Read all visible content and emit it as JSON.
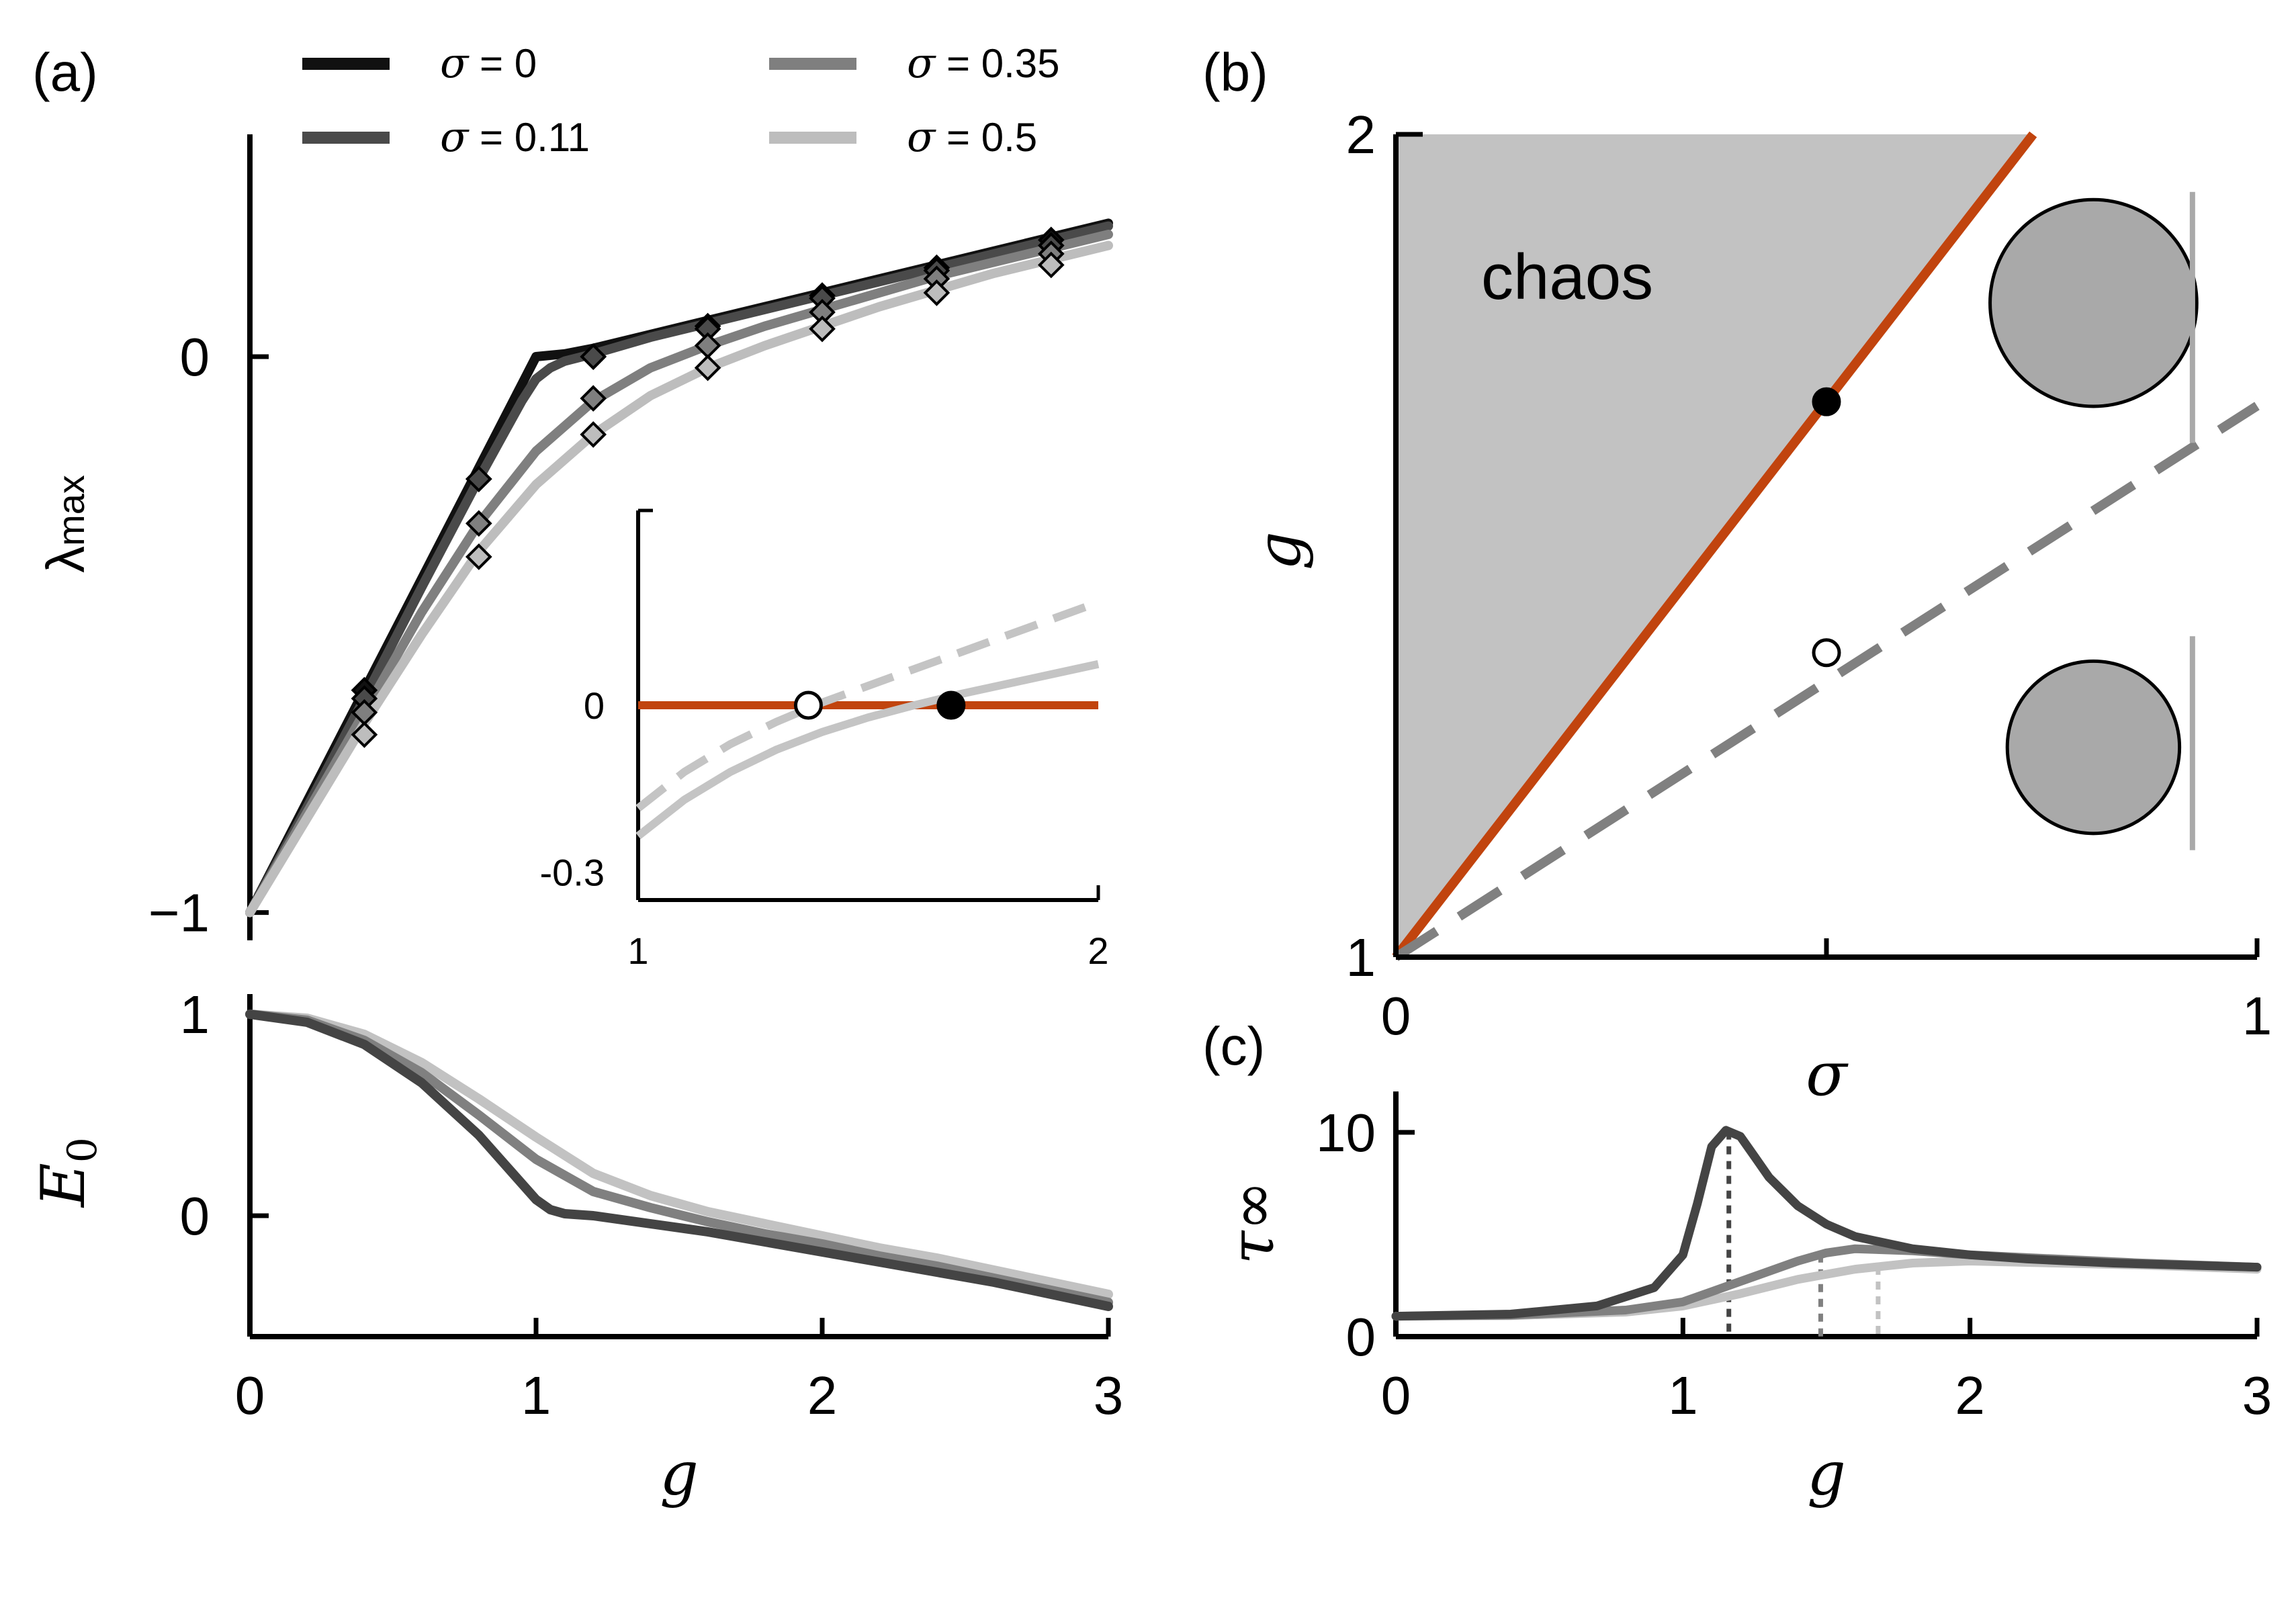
{
  "chart_data": [
    {
      "id": "a-top",
      "panel_label": "(a)",
      "type": "line",
      "xlabel": "",
      "ylabel": "λmax",
      "ylabel_main": "λ",
      "ylabel_sub": "max",
      "xlim": [
        0,
        3
      ],
      "ylim": [
        -1.05,
        0.4
      ],
      "yticks": [
        {
          "v": 0,
          "label": "0"
        },
        {
          "v": -1,
          "label": "−1"
        }
      ],
      "legend": [
        {
          "label": "σ = 0",
          "greek": "σ",
          "rest": " = 0",
          "color": "#111111"
        },
        {
          "label": "σ = 0.11",
          "greek": "σ",
          "rest": " = 0.11",
          "color": "#4a4a4a"
        },
        {
          "label": "σ = 0.35",
          "greek": "σ",
          "rest": " = 0.35",
          "color": "#7f7f7f"
        },
        {
          "label": "σ = 0.5",
          "greek": "σ",
          "rest": " = 0.5",
          "color": "#bdbdbd"
        }
      ],
      "series": [
        {
          "name": "σ = 0",
          "color": "#111111",
          "x": [
            0,
            0.2,
            0.4,
            0.6,
            0.8,
            0.95,
            1.0,
            1.1,
            1.2,
            1.4,
            1.6,
            1.8,
            2.0,
            2.2,
            2.4,
            2.6,
            2.8,
            3.0
          ],
          "y": [
            -1.0,
            -0.8,
            -0.6,
            -0.4,
            -0.2,
            -0.05,
            0.0,
            0.005,
            0.015,
            0.04,
            0.065,
            0.09,
            0.115,
            0.14,
            0.165,
            0.19,
            0.215,
            0.24
          ],
          "markers": {
            "x": [
              0.4,
              0.8,
              1.2,
              1.6,
              2.0,
              2.4,
              2.8
            ],
            "y": [
              -0.6,
              -0.22,
              0.0,
              0.055,
              0.11,
              0.16,
              0.21
            ]
          }
        },
        {
          "name": "σ = 0.11",
          "color": "#4a4a4a",
          "x": [
            0,
            0.2,
            0.4,
            0.6,
            0.8,
            0.95,
            1.0,
            1.05,
            1.1,
            1.2,
            1.4,
            1.6,
            1.8,
            2.0,
            2.2,
            2.4,
            2.6,
            2.8,
            3.0
          ],
          "y": [
            -1.0,
            -0.81,
            -0.615,
            -0.415,
            -0.22,
            -0.08,
            -0.04,
            -0.02,
            -0.008,
            0.005,
            0.035,
            0.06,
            0.085,
            0.11,
            0.135,
            0.16,
            0.185,
            0.21,
            0.235
          ],
          "markers": {
            "x": [
              0.4,
              0.8,
              1.2,
              1.6,
              2.0,
              2.4,
              2.8
            ],
            "y": [
              -0.615,
              -0.22,
              0.0,
              0.05,
              0.105,
              0.155,
              0.2
            ]
          }
        },
        {
          "name": "σ = 0.35",
          "color": "#7f7f7f",
          "x": [
            0,
            0.2,
            0.4,
            0.6,
            0.8,
            1.0,
            1.2,
            1.4,
            1.6,
            1.8,
            2.0,
            2.2,
            2.4,
            2.6,
            2.8,
            3.0
          ],
          "y": [
            -1.0,
            -0.82,
            -0.64,
            -0.46,
            -0.3,
            -0.17,
            -0.08,
            -0.02,
            0.02,
            0.055,
            0.085,
            0.115,
            0.145,
            0.17,
            0.195,
            0.22
          ],
          "markers": {
            "x": [
              0.4,
              0.8,
              1.2,
              1.6,
              2.0,
              2.4,
              2.8
            ],
            "y": [
              -0.64,
              -0.3,
              -0.075,
              0.02,
              0.08,
              0.14,
              0.185
            ]
          }
        },
        {
          "name": "σ = 0.5",
          "color": "#bdbdbd",
          "x": [
            0,
            0.2,
            0.4,
            0.6,
            0.8,
            1.0,
            1.2,
            1.4,
            1.6,
            1.8,
            2.0,
            2.2,
            2.4,
            2.6,
            2.8,
            3.0
          ],
          "y": [
            -1.0,
            -0.83,
            -0.66,
            -0.5,
            -0.35,
            -0.23,
            -0.14,
            -0.07,
            -0.02,
            0.02,
            0.055,
            0.09,
            0.12,
            0.15,
            0.175,
            0.2
          ],
          "markers": {
            "x": [
              0.4,
              0.8,
              1.2,
              1.6,
              2.0,
              2.4,
              2.8
            ],
            "y": [
              -0.68,
              -0.36,
              -0.14,
              -0.02,
              0.05,
              0.115,
              0.165
            ]
          }
        }
      ]
    },
    {
      "id": "a-inset",
      "type": "line",
      "xlim": [
        1,
        2
      ],
      "ylim": [
        -0.35,
        0.35
      ],
      "xticks": [
        {
          "v": 1,
          "label": "1"
        },
        {
          "v": 2,
          "label": "2"
        }
      ],
      "yticks": [
        {
          "v": 0,
          "label": "0"
        },
        {
          "v": -0.3,
          "label": "-0.3"
        }
      ],
      "series": [
        {
          "name": "",
          "color": "#c1440e",
          "style": "solid",
          "x": [
            1,
            2
          ],
          "y": [
            0,
            0
          ]
        },
        {
          "name": "",
          "color": "#c4c4c4",
          "style": "dashed",
          "x": [
            1.0,
            1.1,
            1.2,
            1.3,
            1.4,
            1.5,
            1.6,
            1.7,
            1.8,
            1.9,
            2.0
          ],
          "y": [
            -0.185,
            -0.12,
            -0.07,
            -0.03,
            0.005,
            0.035,
            0.065,
            0.095,
            0.125,
            0.155,
            0.185
          ]
        },
        {
          "name": "",
          "color": "#c4c4c4",
          "style": "solid",
          "x": [
            1.0,
            1.1,
            1.2,
            1.3,
            1.4,
            1.5,
            1.6,
            1.7,
            1.8,
            1.9,
            2.0
          ],
          "y": [
            -0.235,
            -0.17,
            -0.12,
            -0.08,
            -0.048,
            -0.022,
            0.0,
            0.02,
            0.038,
            0.056,
            0.074
          ]
        }
      ],
      "points": [
        {
          "x": 1.37,
          "y": 0,
          "fill": "open"
        },
        {
          "x": 1.68,
          "y": 0,
          "fill": "filled"
        }
      ]
    },
    {
      "id": "a-bottom",
      "type": "line",
      "xlabel": "g",
      "ylabel": "E0",
      "ylabel_main": "E",
      "ylabel_sub": "0",
      "xlim": [
        0,
        3
      ],
      "ylim": [
        -0.6,
        1.1
      ],
      "xticks": [
        {
          "v": 0,
          "label": "0"
        },
        {
          "v": 1,
          "label": "1"
        },
        {
          "v": 2,
          "label": "2"
        },
        {
          "v": 3,
          "label": "3"
        }
      ],
      "yticks": [
        {
          "v": 1,
          "label": "1"
        },
        {
          "v": 0,
          "label": "0"
        }
      ],
      "series": [
        {
          "name": "σ = 0.11",
          "color": "#444444",
          "x": [
            0,
            0.2,
            0.4,
            0.6,
            0.8,
            0.9,
            1.0,
            1.05,
            1.1,
            1.2,
            1.4,
            1.6,
            1.8,
            2.0,
            2.2,
            2.4,
            2.6,
            2.8,
            3.0
          ],
          "y": [
            1.0,
            0.96,
            0.85,
            0.66,
            0.4,
            0.24,
            0.08,
            0.03,
            0.01,
            0.0,
            -0.04,
            -0.08,
            -0.13,
            -0.18,
            -0.23,
            -0.28,
            -0.33,
            -0.39,
            -0.45
          ]
        },
        {
          "name": "σ = 0.35",
          "color": "#808080",
          "x": [
            0,
            0.2,
            0.4,
            0.6,
            0.8,
            1.0,
            1.2,
            1.4,
            1.6,
            1.8,
            2.0,
            2.2,
            2.4,
            2.6,
            2.8,
            3.0
          ],
          "y": [
            1.0,
            0.97,
            0.87,
            0.71,
            0.5,
            0.28,
            0.12,
            0.04,
            -0.03,
            -0.09,
            -0.14,
            -0.2,
            -0.25,
            -0.31,
            -0.37,
            -0.43
          ]
        },
        {
          "name": "σ = 0.5",
          "color": "#c2c2c2",
          "x": [
            0,
            0.2,
            0.4,
            0.6,
            0.8,
            1.0,
            1.2,
            1.4,
            1.6,
            1.8,
            2.0,
            2.2,
            2.4,
            2.6,
            2.8,
            3.0
          ],
          "y": [
            1.0,
            0.98,
            0.9,
            0.76,
            0.58,
            0.39,
            0.21,
            0.1,
            0.02,
            -0.04,
            -0.1,
            -0.16,
            -0.21,
            -0.27,
            -0.33,
            -0.39
          ]
        }
      ]
    },
    {
      "id": "b",
      "panel_label": "(b)",
      "type": "line",
      "xlabel": "σ",
      "ylabel": "g",
      "xlim": [
        0,
        1
      ],
      "ylim": [
        1,
        2
      ],
      "xticks": [
        {
          "v": 0,
          "label": "0"
        },
        {
          "v": 0.5,
          "label": ""
        },
        {
          "v": 1,
          "label": "1"
        }
      ],
      "yticks": [
        {
          "v": 2,
          "label": "2"
        },
        {
          "v": 1,
          "label": "1"
        }
      ],
      "region_label": "chaos",
      "region_color": "#c2c2c2",
      "series": [
        {
          "name": "",
          "color": "#c1440e",
          "style": "solid",
          "x": [
            0,
            0.74
          ],
          "y": [
            1,
            2
          ]
        },
        {
          "name": "",
          "color": "#808080",
          "style": "dashed",
          "x": [
            0,
            1
          ],
          "y": [
            1,
            1.67
          ]
        }
      ],
      "points": [
        {
          "x": 0.5,
          "y": 1.675,
          "fill": "filled"
        },
        {
          "x": 0.5,
          "y": 1.37,
          "fill": "open"
        }
      ],
      "circles": [
        {
          "cx": 0.81,
          "cy": 1.795,
          "r_frac": 0.12,
          "bar_x": 0.925,
          "bar_y": [
            1.625,
            1.93
          ]
        },
        {
          "cx": 0.81,
          "cy": 1.255,
          "r_frac": 0.1,
          "bar_x": 0.925,
          "bar_y": [
            1.13,
            1.39
          ]
        }
      ]
    },
    {
      "id": "c",
      "panel_label": "(c)",
      "type": "line",
      "xlabel": "g",
      "ylabel": "τ∞",
      "xlim": [
        0,
        3
      ],
      "ylim": [
        0,
        12
      ],
      "xticks": [
        {
          "v": 0,
          "label": "0"
        },
        {
          "v": 1,
          "label": "1"
        },
        {
          "v": 2,
          "label": "2"
        },
        {
          "v": 3,
          "label": "3"
        }
      ],
      "yticks": [
        {
          "v": 10,
          "label": "10"
        },
        {
          "v": 0,
          "label": "0"
        }
      ],
      "series": [
        {
          "name": "σ = 0.11",
          "color": "#444444",
          "x": [
            0,
            0.4,
            0.7,
            0.9,
            1.0,
            1.05,
            1.1,
            1.15,
            1.2,
            1.25,
            1.3,
            1.4,
            1.5,
            1.6,
            1.8,
            2.0,
            2.2,
            2.5,
            3.0
          ],
          "y": [
            1.0,
            1.1,
            1.5,
            2.4,
            4.0,
            6.5,
            9.3,
            10.1,
            9.8,
            8.8,
            7.8,
            6.4,
            5.5,
            4.9,
            4.3,
            4.0,
            3.8,
            3.6,
            3.4
          ],
          "dropline": 1.16
        },
        {
          "name": "σ = 0.35",
          "color": "#808080",
          "x": [
            0,
            0.4,
            0.8,
            1.0,
            1.2,
            1.4,
            1.5,
            1.6,
            1.8,
            2.0,
            2.3,
            2.6,
            3.0
          ],
          "y": [
            1.0,
            1.05,
            1.3,
            1.7,
            2.7,
            3.7,
            4.1,
            4.3,
            4.2,
            4.0,
            3.8,
            3.6,
            3.4
          ],
          "dropline": 1.48
        },
        {
          "name": "σ = 0.5",
          "color": "#c2c2c2",
          "x": [
            0,
            0.4,
            0.8,
            1.0,
            1.2,
            1.4,
            1.6,
            1.8,
            2.0,
            2.3,
            2.6,
            3.0
          ],
          "y": [
            1.0,
            1.03,
            1.2,
            1.5,
            2.1,
            2.8,
            3.3,
            3.6,
            3.7,
            3.6,
            3.5,
            3.3
          ],
          "dropline": 1.68
        }
      ]
    }
  ]
}
